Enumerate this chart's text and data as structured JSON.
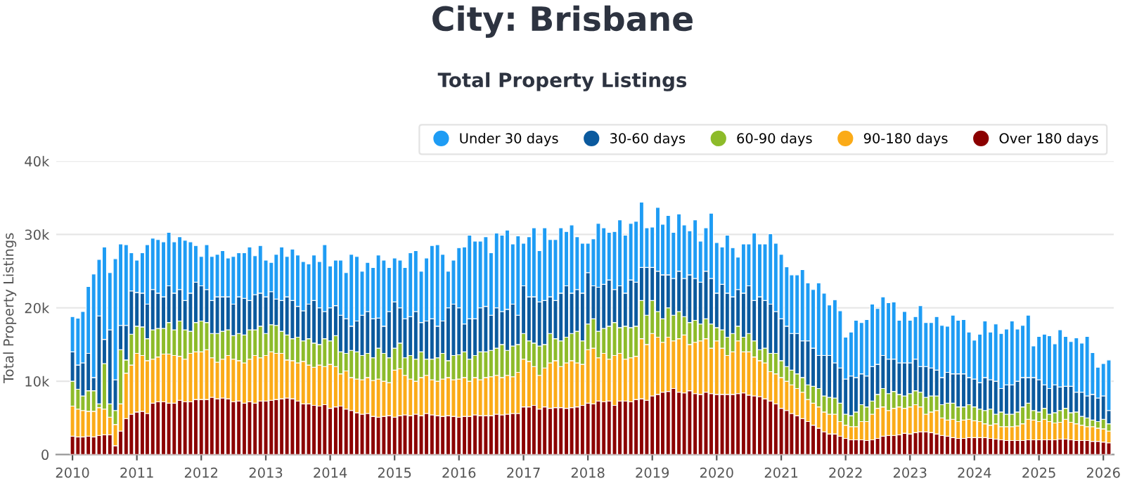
{
  "chart_data": {
    "type": "bar",
    "title": "City: Brisbane",
    "subtitle": "Total Property Listings",
    "ylabel": "Total Property Listings",
    "stacked": true,
    "grid": "y",
    "legend": "top right",
    "xlim": [
      "2009-10",
      "2026-03"
    ],
    "xticks": [
      "2010",
      "2011",
      "2012",
      "2013",
      "2014",
      "2015",
      "2016",
      "2017",
      "2018",
      "2019",
      "2020",
      "2021",
      "2022",
      "2023",
      "2024",
      "2025",
      "2026"
    ],
    "ylim": [
      0,
      40
    ],
    "yticks": [
      0,
      {
        "value": 10,
        "label": "10k"
      },
      {
        "value": 20,
        "label": "20k"
      },
      {
        "value": 30,
        "label": "30k"
      },
      {
        "value": 40,
        "label": "40k"
      }
    ],
    "x": [
      "2010-01",
      "2010-02",
      "2010-03",
      "2010-04",
      "2010-05",
      "2010-06",
      "2010-07",
      "2010-08",
      "2010-09",
      "2010-10",
      "2010-11",
      "2010-12",
      "2011-01",
      "2011-02",
      "2011-03",
      "2011-04",
      "2011-05",
      "2011-06",
      "2011-07",
      "2011-08",
      "2011-09",
      "2011-10",
      "2011-11",
      "2011-12",
      "2012-01",
      "2012-02",
      "2012-03",
      "2012-04",
      "2012-05",
      "2012-06",
      "2012-07",
      "2012-08",
      "2012-09",
      "2012-10",
      "2012-11",
      "2012-12",
      "2013-01",
      "2013-02",
      "2013-03",
      "2013-04",
      "2013-05",
      "2013-06",
      "2013-07",
      "2013-08",
      "2013-09",
      "2013-10",
      "2013-11",
      "2013-12",
      "2014-01",
      "2014-02",
      "2014-03",
      "2014-04",
      "2014-05",
      "2014-06",
      "2014-07",
      "2014-08",
      "2014-09",
      "2014-10",
      "2014-11",
      "2014-12",
      "2015-01",
      "2015-02",
      "2015-03",
      "2015-04",
      "2015-05",
      "2015-06",
      "2015-07",
      "2015-08",
      "2015-09",
      "2015-10",
      "2015-11",
      "2015-12",
      "2016-01",
      "2016-02",
      "2016-03",
      "2016-04",
      "2016-05",
      "2016-06",
      "2016-07",
      "2016-08",
      "2016-09",
      "2016-10",
      "2016-11",
      "2016-12",
      "2017-01",
      "2017-02",
      "2017-03",
      "2017-04",
      "2017-05",
      "2017-06",
      "2017-07",
      "2017-08",
      "2017-09",
      "2017-10",
      "2017-11",
      "2017-12",
      "2018-01",
      "2018-02",
      "2018-03",
      "2018-04",
      "2018-05",
      "2018-06",
      "2018-07",
      "2018-08",
      "2018-09",
      "2018-10",
      "2018-11",
      "2018-12",
      "2019-01",
      "2019-02",
      "2019-03",
      "2019-04",
      "2019-05",
      "2019-06",
      "2019-07",
      "2019-08",
      "2019-09",
      "2019-10",
      "2019-11",
      "2019-12",
      "2020-01",
      "2020-02",
      "2020-03",
      "2020-04",
      "2020-05",
      "2020-06",
      "2020-07",
      "2020-08",
      "2020-09",
      "2020-10",
      "2020-11",
      "2020-12",
      "2021-01",
      "2021-02",
      "2021-03",
      "2021-04",
      "2021-05",
      "2021-06",
      "2021-07",
      "2021-08",
      "2021-09",
      "2021-10",
      "2021-11",
      "2021-12",
      "2022-01",
      "2022-02",
      "2022-03",
      "2022-04",
      "2022-05",
      "2022-06",
      "2022-07",
      "2022-08",
      "2022-09",
      "2022-10",
      "2022-11",
      "2022-12",
      "2023-01",
      "2023-02",
      "2023-03",
      "2023-04",
      "2023-05",
      "2023-06",
      "2023-07",
      "2023-08",
      "2023-09",
      "2023-10",
      "2023-11",
      "2023-12",
      "2024-01",
      "2024-02",
      "2024-03",
      "2024-04",
      "2024-05",
      "2024-06",
      "2024-07",
      "2024-08",
      "2024-09",
      "2024-10",
      "2024-11",
      "2024-12",
      "2025-01",
      "2025-02",
      "2025-03",
      "2025-04",
      "2025-05",
      "2025-06",
      "2025-07",
      "2025-08",
      "2025-09",
      "2025-10",
      "2025-11",
      "2025-12",
      "2026-01",
      "2026-02"
    ],
    "series": [
      {
        "name": "Over 180 days",
        "color": "#8b0000",
        "values": [
          2.5,
          2.4,
          2.4,
          2.5,
          2.4,
          2.6,
          2.7,
          2.7,
          1.2,
          3.2,
          4.9,
          5.5,
          5.8,
          5.9,
          5.6,
          7.0,
          7.2,
          7.2,
          7.0,
          7.0,
          7.4,
          7.2,
          7.2,
          7.5,
          7.5,
          7.5,
          7.8,
          7.6,
          7.7,
          7.6,
          7.2,
          7.3,
          7.0,
          7.2,
          7.0,
          7.3,
          7.3,
          7.4,
          7.5,
          7.6,
          7.7,
          7.6,
          7.3,
          6.9,
          6.9,
          6.7,
          6.6,
          6.8,
          6.3,
          6.5,
          6.6,
          6.2,
          6.0,
          5.7,
          5.5,
          5.6,
          5.2,
          5.1,
          5.2,
          5.3,
          5.1,
          5.3,
          5.4,
          5.3,
          5.5,
          5.3,
          5.6,
          5.4,
          5.3,
          5.2,
          5.3,
          5.2,
          5.1,
          5.2,
          5.2,
          5.4,
          5.3,
          5.3,
          5.3,
          5.5,
          5.4,
          5.5,
          5.6,
          5.6,
          6.5,
          6.5,
          6.7,
          6.2,
          6.5,
          6.3,
          6.4,
          6.4,
          6.3,
          6.4,
          6.5,
          6.7,
          7.0,
          6.9,
          7.3,
          7.2,
          7.3,
          6.7,
          7.3,
          7.3,
          7.2,
          7.5,
          7.6,
          7.4,
          8.0,
          8.2,
          8.5,
          8.6,
          9.0,
          8.5,
          8.4,
          8.7,
          8.3,
          8.2,
          8.5,
          8.3,
          8.2,
          8.2,
          8.2,
          8.2,
          8.3,
          8.4,
          8.1,
          8.0,
          7.9,
          7.6,
          7.3,
          6.9,
          6.3,
          6.0,
          5.6,
          5.3,
          4.9,
          4.5,
          4.0,
          3.6,
          3.1,
          2.8,
          2.8,
          2.5,
          2.2,
          2.0,
          2.0,
          2.0,
          1.9,
          2.0,
          2.2,
          2.5,
          2.6,
          2.6,
          2.7,
          2.9,
          2.8,
          3.0,
          3.1,
          3.1,
          3.0,
          2.8,
          2.6,
          2.5,
          2.3,
          2.2,
          2.2,
          2.3,
          2.3,
          2.3,
          2.3,
          2.2,
          2.1,
          2.0,
          1.9,
          1.9,
          1.9,
          1.9,
          2.0,
          2.0,
          2.0,
          2.0,
          2.0,
          2.0,
          2.1,
          2.1,
          2.0,
          1.9,
          1.9,
          1.9,
          1.8,
          1.8,
          1.7,
          1.6
        ]
      },
      {
        "name": "90-180 days",
        "color": "#fbab18",
        "values": [
          4.1,
          3.8,
          3.6,
          3.4,
          3.5,
          3.8,
          3.5,
          2.4,
          2.9,
          3.7,
          6.2,
          6.7,
          8.0,
          7.6,
          7.2,
          6.0,
          6.1,
          6.5,
          6.7,
          6.5,
          6.0,
          5.8,
          6.6,
          6.5,
          6.5,
          6.8,
          5.4,
          5.0,
          5.3,
          5.9,
          5.8,
          5.5,
          5.5,
          5.8,
          6.5,
          5.9,
          6.2,
          6.6,
          6.3,
          6.2,
          5.2,
          5.2,
          5.2,
          5.8,
          5.3,
          5.2,
          5.6,
          5.2,
          6.0,
          5.5,
          4.4,
          5.2,
          4.5,
          4.6,
          4.7,
          4.9,
          4.9,
          5.2,
          4.8,
          4.5,
          6.4,
          6.4,
          5.4,
          5.0,
          4.5,
          5.2,
          5.2,
          4.8,
          4.7,
          5.1,
          5.2,
          5.0,
          5.2,
          5.3,
          4.8,
          5.1,
          4.9,
          5.2,
          5.3,
          5.3,
          5.1,
          5.3,
          5.0,
          5.6,
          6.5,
          6.2,
          5.3,
          4.6,
          5.3,
          6.2,
          6.4,
          5.6,
          6.2,
          6.4,
          6.0,
          5.6,
          7.3,
          7.6,
          5.9,
          6.6,
          5.7,
          6.8,
          6.5,
          5.7,
          6.0,
          5.9,
          8.2,
          7.6,
          8.5,
          7.8,
          6.8,
          7.4,
          6.5,
          7.3,
          7.9,
          6.3,
          7.0,
          7.3,
          7.3,
          6.2,
          7.3,
          6.3,
          5.3,
          5.8,
          7.2,
          5.6,
          5.9,
          5.3,
          4.9,
          4.9,
          4.0,
          4.1,
          4.2,
          4.0,
          3.9,
          3.7,
          3.6,
          3.0,
          3.0,
          2.9,
          2.7,
          2.7,
          2.7,
          2.0,
          1.8,
          1.8,
          1.8,
          2.5,
          2.6,
          3.5,
          4.1,
          4.0,
          3.4,
          3.7,
          3.8,
          3.4,
          3.7,
          3.8,
          3.4,
          2.4,
          2.8,
          3.2,
          2.4,
          2.2,
          2.5,
          2.3,
          2.5,
          2.5,
          2.3,
          2.2,
          1.9,
          1.8,
          2.1,
          1.8,
          1.9,
          1.9,
          2.0,
          2.3,
          2.8,
          2.7,
          2.5,
          2.8,
          2.5,
          2.3,
          2.3,
          2.7,
          2.4,
          2.3,
          2.1,
          1.9,
          2.0,
          1.8,
          1.8,
          1.6
        ]
      },
      {
        "name": "60-90 days",
        "color": "#8dbb2a",
        "values": [
          3.4,
          2.7,
          2.0,
          2.8,
          2.8,
          0.5,
          6.2,
          1.8,
          1.9,
          7.4,
          1.8,
          4.2,
          3.7,
          3.9,
          3.0,
          4.0,
          3.9,
          3.5,
          4.3,
          3.5,
          4.8,
          4.0,
          3.0,
          4.0,
          4.2,
          3.7,
          3.3,
          3.9,
          3.8,
          3.5,
          3.2,
          3.7,
          3.8,
          4.0,
          3.5,
          4.3,
          3.0,
          3.7,
          3.8,
          3.0,
          3.4,
          3.0,
          3.5,
          2.8,
          3.6,
          3.3,
          2.8,
          3.8,
          3.2,
          4.2,
          3.0,
          2.4,
          3.7,
          3.7,
          3.3,
          3.3,
          3.1,
          4.2,
          3.8,
          3.4,
          3.0,
          3.5,
          2.4,
          3.2,
          3.0,
          3.5,
          2.2,
          2.8,
          3.2,
          3.5,
          2.3,
          3.3,
          3.3,
          3.5,
          3.0,
          3.0,
          3.8,
          3.5,
          3.6,
          3.7,
          4.5,
          3.4,
          4.2,
          3.8,
          3.5,
          2.8,
          3.2,
          4.0,
          3.2,
          4.0,
          3.0,
          3.5,
          3.5,
          3.7,
          4.3,
          3.2,
          3.5,
          4.0,
          3.6,
          3.4,
          4.5,
          4.5,
          3.5,
          4.5,
          4.1,
          4.1,
          5.2,
          4.0,
          4.5,
          3.5,
          3.2,
          4.0,
          3.5,
          3.7,
          2.5,
          3.0,
          3.0,
          2.3,
          2.7,
          3.3,
          1.8,
          2.5,
          2.5,
          2.5,
          2.0,
          2.0,
          2.5,
          2.2,
          1.5,
          2.0,
          2.5,
          2.8,
          2.3,
          2.0,
          2.0,
          2.0,
          2.0,
          2.0,
          2.3,
          2.5,
          2.2,
          2.3,
          2.2,
          2.5,
          1.5,
          1.5,
          2.0,
          2.3,
          2.0,
          1.8,
          1.9,
          2.5,
          2.3,
          2.3,
          1.7,
          1.7,
          1.8,
          1.9,
          2.0,
          2.3,
          2.2,
          2.0,
          1.8,
          2.3,
          2.2,
          2.0,
          1.8,
          2.0,
          1.9,
          1.7,
          1.8,
          2.2,
          1.3,
          2.0,
          1.7,
          1.7,
          1.9,
          2.3,
          2.2,
          1.3,
          1.3,
          1.5,
          1.0,
          1.4,
          1.6,
          1.5,
          1.3,
          1.6,
          1.2,
          1.2,
          0.9,
          0.9,
          1.3,
          1.0
        ]
      },
      {
        "name": "30-60 days",
        "color": "#0b5a9e",
        "values": [
          4.0,
          3.3,
          4.5,
          5.1,
          1.8,
          12.0,
          3.3,
          10.1,
          4.2,
          3.3,
          4.7,
          5.9,
          4.6,
          4.6,
          4.7,
          5.5,
          4.8,
          4.3,
          5.0,
          5.0,
          4.3,
          4.0,
          5.2,
          5.5,
          4.8,
          4.5,
          4.5,
          5.0,
          4.7,
          4.5,
          4.3,
          5.0,
          5.0,
          4.0,
          4.8,
          4.5,
          5.0,
          4.5,
          3.6,
          4.2,
          5.2,
          5.2,
          4.2,
          4.1,
          4.7,
          5.8,
          5.0,
          3.7,
          4.5,
          4.1,
          5.0,
          4.7,
          3.3,
          4.2,
          5.5,
          5.7,
          5.3,
          4.1,
          3.7,
          6.3,
          6.3,
          4.8,
          5.3,
          5.3,
          6.5,
          4.0,
          5.2,
          5.5,
          4.3,
          4.4,
          7.2,
          7.0,
          6.4,
          3.8,
          5.5,
          5.0,
          6.0,
          6.2,
          4.8,
          5.5,
          4.5,
          5.6,
          5.7,
          4.0,
          6.5,
          6.0,
          6.3,
          6.0,
          6.0,
          5.0,
          5.2,
          6.5,
          7.0,
          5.5,
          5.7,
          6.5,
          7.0,
          4.5,
          6.0,
          6.0,
          6.3,
          4.5,
          5.7,
          4.5,
          6.5,
          6.0,
          4.5,
          6.5,
          4.5,
          5.5,
          6.0,
          4.5,
          5.0,
          5.5,
          5.2,
          6.5,
          5.7,
          5.7,
          6.5,
          6.2,
          4.7,
          6.2,
          6.0,
          5.0,
          5.0,
          6.0,
          6.5,
          5.5,
          7.2,
          6.5,
          6.7,
          5.7,
          5.7,
          5.5,
          5.0,
          5.5,
          5.0,
          6.0,
          5.2,
          4.5,
          5.5,
          5.7,
          4.8,
          4.8,
          4.8,
          5.4,
          4.7,
          4.2,
          4.2,
          4.7,
          4.1,
          4.5,
          4.7,
          4.4,
          4.3,
          4.5,
          4.2,
          4.3,
          3.5,
          4.2,
          3.8,
          3.5,
          3.7,
          4.2,
          4.0,
          4.5,
          4.5,
          3.7,
          3.8,
          3.6,
          4.5,
          4.0,
          4.5,
          3.2,
          4.0,
          4.0,
          4.2,
          4.0,
          3.5,
          4.5,
          4.4,
          3.2,
          3.5,
          3.8,
          3.2,
          3.0,
          3.6,
          2.7,
          3.3,
          3.0,
          3.5,
          3.2,
          3.2,
          1.8
        ]
      },
      {
        "name": "Under 30 days",
        "color": "#1e9cf4",
        "values": [
          4.8,
          6.4,
          7.0,
          9.1,
          14.1,
          7.7,
          12.6,
          7.8,
          16.5,
          11.1,
          11.0,
          5.2,
          4.4,
          5.5,
          8.1,
          7.0,
          7.3,
          7.5,
          7.3,
          7.0,
          7.2,
          8.2,
          7.0,
          5.0,
          4.0,
          6.1,
          6.0,
          5.8,
          6.3,
          5.3,
          6.5,
          6.0,
          6.2,
          7.3,
          5.3,
          6.5,
          5.0,
          4.0,
          6.1,
          7.3,
          5.5,
          7.0,
          7.0,
          6.7,
          5.5,
          6.2,
          6.3,
          9.1,
          5.7,
          6.2,
          7.5,
          6.3,
          9.8,
          8.8,
          6.0,
          6.7,
          7.0,
          8.6,
          9.0,
          6.0,
          6.0,
          6.5,
          7.0,
          8.7,
          8.3,
          7.0,
          8.6,
          10.0,
          11.1,
          9.1,
          5.0,
          6.0,
          8.2,
          10.5,
          11.4,
          10.6,
          9.1,
          9.5,
          8.5,
          10.2,
          10.4,
          10.8,
          8.2,
          10.8,
          5.8,
          8.2,
          9.4,
          7.0,
          9.9,
          7.8,
          8.3,
          8.9,
          7.4,
          9.3,
          7.2,
          6.8,
          4.0,
          6.4,
          8.7,
          7.7,
          6.5,
          7.9,
          9.0,
          7.9,
          7.7,
          8.3,
          8.9,
          5.4,
          5.5,
          8.7,
          6.9,
          8.1,
          6.3,
          7.8,
          7.3,
          6.0,
          8.0,
          5.6,
          5.9,
          8.9,
          6.9,
          5.1,
          7.9,
          6.7,
          4.4,
          6.7,
          5.7,
          9.2,
          7.2,
          7.7,
          9.6,
          9.3,
          8.8,
          8.1,
          8.0,
          8.0,
          9.7,
          7.9,
          8.0,
          9.9,
          8.5,
          6.9,
          8.6,
          7.8,
          5.7,
          6.0,
          7.8,
          7.0,
          7.7,
          8.5,
          7.6,
          8.0,
          7.7,
          7.8,
          5.8,
          7.0,
          5.8,
          5.8,
          8.3,
          6.0,
          6.2,
          7.3,
          7.1,
          6.3,
          8.0,
          7.3,
          7.4,
          6.2,
          5.3,
          6.6,
          7.7,
          6.5,
          7.8,
          7.5,
          7.6,
          8.7,
          7.1,
          7.1,
          8.5,
          4.3,
          5.9,
          6.9,
          7.2,
          5.6,
          7.8,
          6.8,
          6.1,
          7.4,
          6.7,
          8.1,
          5.7,
          4.2,
          4.4,
          6.9
        ]
      }
    ]
  }
}
